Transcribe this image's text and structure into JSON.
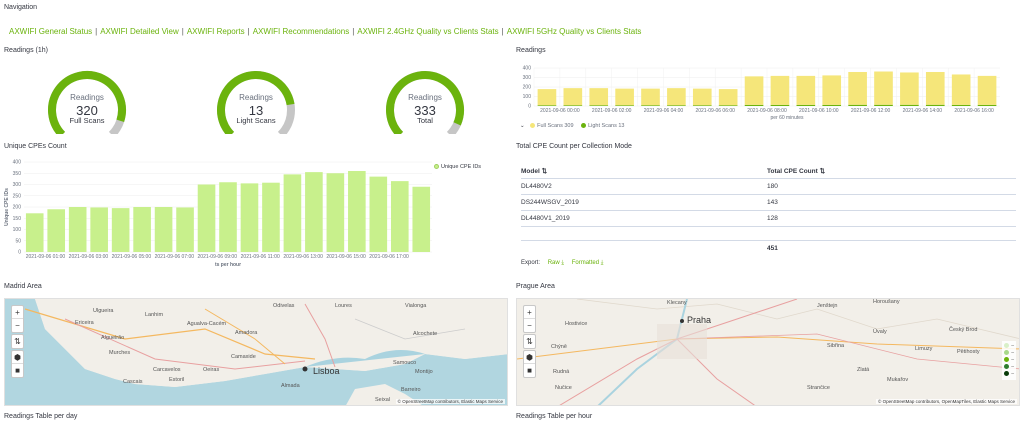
{
  "navigation": {
    "title": "Navigation",
    "links": [
      "AXWIFI General Status",
      "AXWIFI Detailed View",
      "AXWIFI Reports",
      "AXWIFI Recommendations",
      "AXWIFI 2.4GHz Quality vs Clients Stats",
      "AXWIFI 5GHz Quality vs Clients Stats"
    ]
  },
  "readings_gauges": {
    "title": "Readings (1h)",
    "gauges": [
      {
        "label": "Readings",
        "value": "320",
        "sub": "Full Scans",
        "fraction": 0.9
      },
      {
        "label": "Readings",
        "value": "13",
        "sub": "Light Scans",
        "fraction": 0.8
      },
      {
        "label": "Readings",
        "value": "333",
        "sub": "Total",
        "fraction": 0.92
      }
    ],
    "colors": {
      "fill": "#6bb30d",
      "track": "#c6c6c6"
    }
  },
  "readings_chart": {
    "title": "Readings",
    "xaxis_label": "per 60 minutes",
    "legend": [
      {
        "name": "Full Scans",
        "value": "309",
        "color": "#f5e67a"
      },
      {
        "name": "Light Scans",
        "value": "13",
        "color": "#6bb30d"
      }
    ]
  },
  "unique_cpes": {
    "title": "Unique CPEs Count",
    "legend": "Unique CPE IDs",
    "ylabel": "Unique CPE IDs",
    "xlabel": "ts per hour"
  },
  "total_cpe": {
    "title": "Total CPE Count per Collection Mode",
    "headers": [
      "Model",
      "Total CPE Count"
    ],
    "rows": [
      {
        "model": "DL4480V2",
        "count": "180"
      },
      {
        "model": "DS244WSGV_2019",
        "count": "143"
      },
      {
        "model": "DL4480V1_2019",
        "count": "128"
      }
    ],
    "total": "451",
    "export_label": "Export:",
    "export_raw": "Raw",
    "export_formatted": "Formatted"
  },
  "madrid_map": {
    "title": "Madrid Area",
    "places": [
      "Ulgueira",
      "Ericeira",
      "Lanhim",
      "Agualva-Cacém",
      "Amadora",
      "Odivelas",
      "Loures",
      "Vialonga",
      "Carcavelos",
      "Cascais",
      "Estoril",
      "Oeiras",
      "Almada",
      "Lisboa",
      "Seixal",
      "Barreiro",
      "Montijo",
      "Alcochete",
      "Samouco",
      "Camaxide",
      "Murches",
      "Algueirão"
    ],
    "attribution": "© OpenStreetMap contributors, Elastic Maps Service"
  },
  "prague_map": {
    "title": "Prague Area",
    "places": [
      "Praha",
      "Hostivice",
      "Chýně",
      "Rudná",
      "Nučice",
      "Úvaly",
      "Český Brod",
      "Limuzy",
      "Pětihosty",
      "Horoušany",
      "Jenštejn",
      "Zlatá",
      "Mukařov",
      "Strančice",
      "Sibřina",
      "Klecany"
    ],
    "attribution": "© OpenStreetMap contributors, OpenMapTiles, Elastic Maps Service"
  },
  "map_controls": [
    "+",
    "−",
    "⇅",
    "⬢",
    "■"
  ],
  "bottom_titles": {
    "left": "Readings Table per day",
    "right": "Readings Table per hour"
  },
  "chart_data": [
    {
      "type": "bar",
      "title": "Readings",
      "xlabel": "per 60 minutes",
      "ylim": [
        0,
        400
      ],
      "yticks": [
        0,
        100,
        200,
        300,
        400
      ],
      "xticks": [
        "2021-09-06 00:00",
        "2021-09-06 02:00",
        "2021-09-06 04:00",
        "2021-09-06 06:00",
        "2021-09-06 08:00",
        "2021-09-06 10:00",
        "2021-09-06 12:00",
        "2021-09-06 14:00",
        "2021-09-06 16:00"
      ],
      "series": [
        {
          "name": "Full Scans",
          "values": [
            170,
            180,
            180,
            175,
            175,
            180,
            175,
            170,
            300,
            305,
            305,
            310,
            345,
            350,
            340,
            345,
            320,
            305
          ]
        },
        {
          "name": "Light Scans",
          "values": [
            8,
            8,
            8,
            8,
            8,
            8,
            8,
            8,
            12,
            12,
            12,
            12,
            13,
            13,
            13,
            13,
            12,
            12
          ]
        }
      ]
    },
    {
      "type": "bar",
      "title": "Unique CPEs Count",
      "xlabel": "ts per hour",
      "ylabel": "Unique CPE IDs",
      "ylim": [
        0,
        400
      ],
      "yticks": [
        0,
        50,
        100,
        150,
        200,
        250,
        300,
        350,
        400
      ],
      "xticks": [
        "2021-09-06 01:00",
        "2021-09-06 03:00",
        "2021-09-06 05:00",
        "2021-09-06 07:00",
        "2021-09-06 09:00",
        "2021-09-06 11:00",
        "2021-09-06 13:00",
        "2021-09-06 15:00",
        "2021-09-06 17:00"
      ],
      "series": [
        {
          "name": "Unique CPE IDs",
          "values": [
            172,
            190,
            200,
            198,
            195,
            200,
            200,
            198,
            300,
            310,
            305,
            308,
            345,
            355,
            350,
            360,
            335,
            315,
            290
          ]
        }
      ]
    }
  ]
}
